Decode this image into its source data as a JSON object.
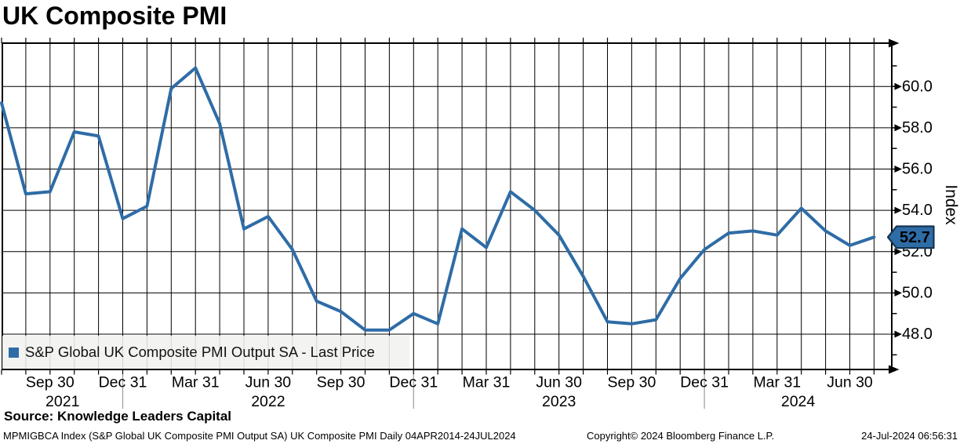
{
  "title": "UK Composite PMI",
  "legend": {
    "label": "S&P Global UK Composite PMI Output SA - Last Price",
    "marker_color": "#2e6ca6"
  },
  "source": "Source: Knowledge Leaders Capital",
  "footer": {
    "left": "MPMIGBCA Index (S&P Global UK Composite PMI Output SA) UK Composite PMI  Daily 04APR2014-24JUL2024",
    "center": "Copyright© 2024 Bloomberg Finance L.P.",
    "right": "24-Jul-2024 06:56:31"
  },
  "y_axis": {
    "label": "Index",
    "last_price_badge": "52.7",
    "badge_color": "#2e6ca6"
  },
  "chart_data": {
    "type": "line",
    "title": "UK Composite PMI",
    "ylabel": "Index",
    "ylim": [
      46.29,
      62.1
    ],
    "grid": {
      "vertical": "monthly",
      "horizontal": "every 2.0 index points"
    },
    "legend_position": "bottom-left",
    "line_color": "#2e6ca6",
    "x": [
      "Jul 2021",
      "Aug 2021",
      "Sep 2021",
      "Oct 2021",
      "Nov 2021",
      "Dec 2021",
      "Jan 2022",
      "Feb 2022",
      "Mar 2022",
      "Apr 2022",
      "May 2022",
      "Jun 2022",
      "Jul 2022",
      "Aug 2022",
      "Sep 2022",
      "Oct 2022",
      "Nov 2022",
      "Dec 2022",
      "Jan 2023",
      "Feb 2023",
      "Mar 2023",
      "Apr 2023",
      "May 2023",
      "Jun 2023",
      "Jul 2023",
      "Aug 2023",
      "Sep 2023",
      "Oct 2023",
      "Nov 2023",
      "Dec 2023",
      "Jan 2024",
      "Feb 2024",
      "Mar 2024",
      "Apr 2024",
      "May 2024",
      "Jun 2024",
      "Jul 2024"
    ],
    "series": [
      {
        "name": "S&P Global UK Composite PMI Output SA - Last Price",
        "color": "#2e6ca6",
        "values": [
          59.2,
          54.8,
          54.9,
          57.8,
          57.6,
          53.6,
          54.2,
          59.9,
          60.9,
          58.2,
          53.1,
          53.7,
          52.1,
          49.6,
          49.1,
          48.2,
          48.2,
          49.0,
          48.5,
          53.1,
          52.2,
          54.9,
          54.0,
          52.8,
          50.8,
          48.6,
          48.5,
          48.7,
          50.7,
          52.1,
          52.9,
          53.0,
          52.8,
          54.1,
          53.0,
          52.3,
          52.7
        ]
      }
    ],
    "last_price": 52.7,
    "y_major_ticks": [
      {
        "value": 60,
        "label": "60.0"
      },
      {
        "value": 58,
        "label": "58.0"
      },
      {
        "value": 56,
        "label": "56.0"
      },
      {
        "value": 54,
        "label": "54.0"
      },
      {
        "value": 52,
        "label": "52.0"
      },
      {
        "value": 50,
        "label": "50.0"
      },
      {
        "value": 48,
        "label": "48.0"
      }
    ],
    "y_minor_step": 1,
    "x_ticks": [
      {
        "i": 2,
        "label": "Sep 30"
      },
      {
        "i": 5,
        "label": "Dec 31"
      },
      {
        "i": 8,
        "label": "Mar 31"
      },
      {
        "i": 11,
        "label": "Jun 30"
      },
      {
        "i": 14,
        "label": "Sep 30"
      },
      {
        "i": 17,
        "label": "Dec 31"
      },
      {
        "i": 20,
        "label": "Mar 31"
      },
      {
        "i": 23,
        "label": "Jun 30"
      },
      {
        "i": 26,
        "label": "Sep 30"
      },
      {
        "i": 29,
        "label": "Dec 31"
      },
      {
        "i": 32,
        "label": "Mar 31"
      },
      {
        "i": 35,
        "label": "Jun 30"
      }
    ],
    "year_labels": [
      "2021",
      "2022",
      "2023",
      "2024"
    ],
    "year_separator_i": [
      5,
      17,
      29
    ]
  }
}
